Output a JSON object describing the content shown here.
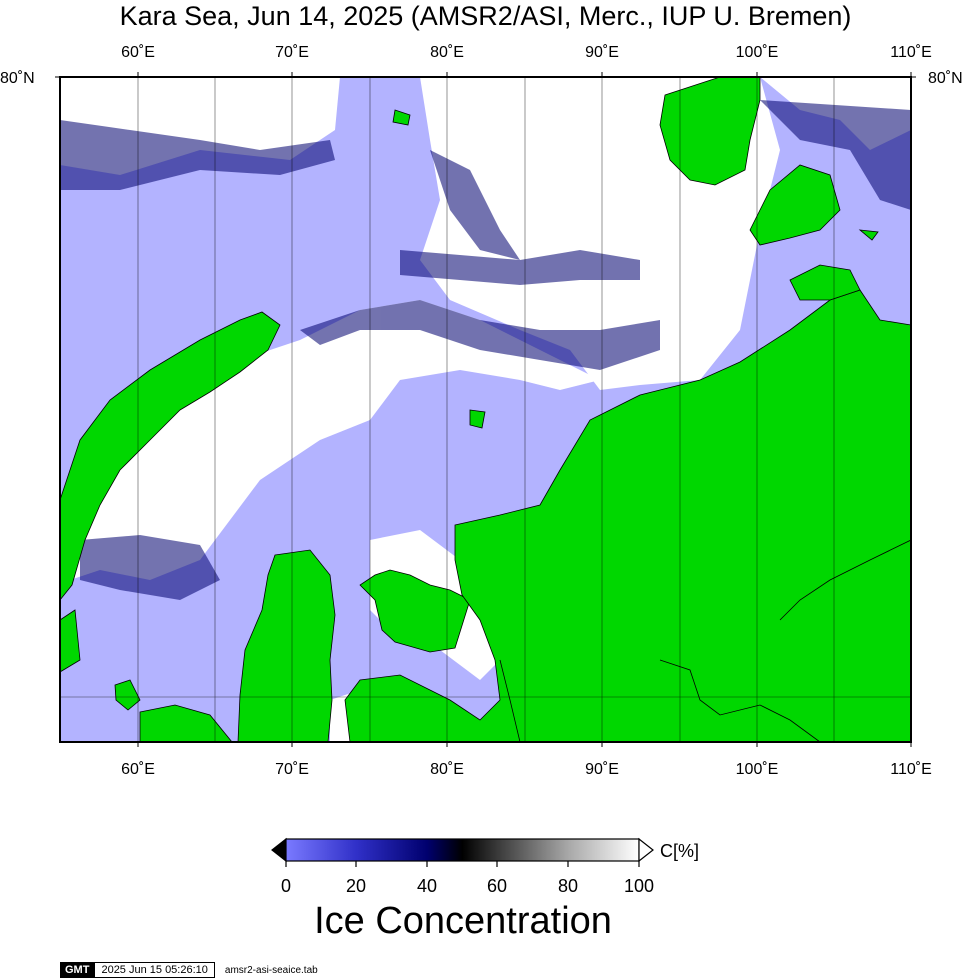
{
  "title": "Kara Sea, Jun 14, 2025 (AMSR2/ASI, Merc., IUP U. Bremen)",
  "map": {
    "lon_labels": [
      "60˚E",
      "70˚E",
      "80˚E",
      "90˚E",
      "100˚E",
      "110˚E"
    ],
    "lat_labels": [
      "80˚N"
    ],
    "colors": {
      "open_water": "#b3b3ff",
      "land": "#00d700",
      "ice_white": "#ffffff",
      "dark_blue": "#00006e",
      "frame": "#000000"
    }
  },
  "colorbar": {
    "title": "Ice Concentration",
    "unit": "C[%]",
    "ticks": [
      "0",
      "20",
      "40",
      "60",
      "80",
      "100"
    ]
  },
  "footer": {
    "logo": "GMT",
    "timestamp": "2025 Jun 15 05:26:10",
    "table": "amsr2-asi-seaice.tab"
  }
}
